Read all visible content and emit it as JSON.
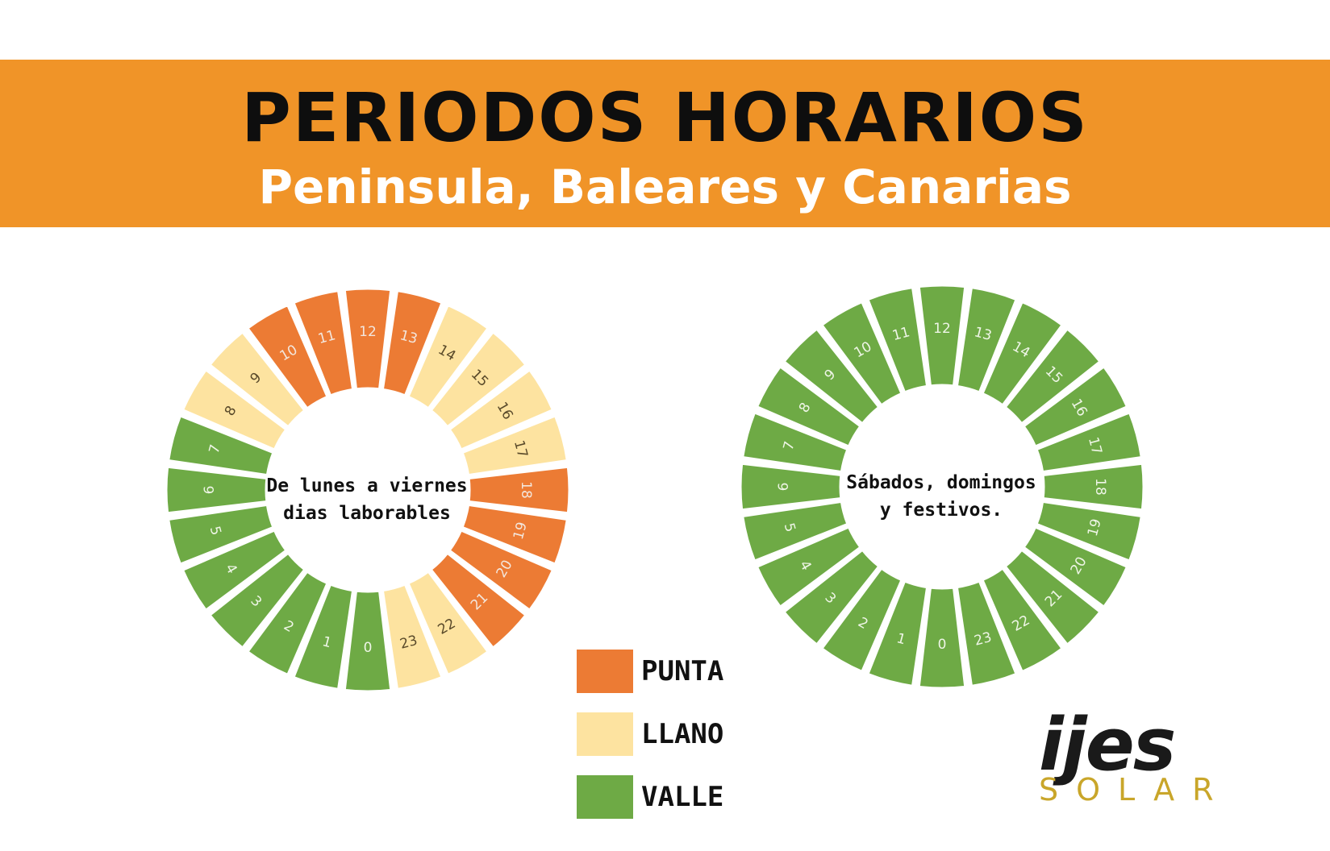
{
  "header": {
    "title": "PERIODOS HORARIOS",
    "subtitle": "Peninsula, Baleares y Canarias"
  },
  "colors": {
    "banner": "#f09428",
    "punta": "#ec7b34",
    "llano": "#fde3a0",
    "valle": "#6eaa45"
  },
  "wheels": [
    {
      "id": "weekday",
      "center_lines": [
        "De lunes a viernes",
        "dias laborables"
      ],
      "hours": [
        "V",
        "V",
        "V",
        "V",
        "V",
        "V",
        "V",
        "V",
        "L",
        "L",
        "P",
        "P",
        "P",
        "P",
        "L",
        "L",
        "L",
        "L",
        "P",
        "P",
        "P",
        "P",
        "L",
        "L"
      ]
    },
    {
      "id": "weekend",
      "center_lines": [
        "Sábados, domingos",
        "y festivos."
      ],
      "hours": [
        "V",
        "V",
        "V",
        "V",
        "V",
        "V",
        "V",
        "V",
        "V",
        "V",
        "V",
        "V",
        "V",
        "V",
        "V",
        "V",
        "V",
        "V",
        "V",
        "V",
        "V",
        "V",
        "V",
        "V"
      ]
    }
  ],
  "legend": [
    {
      "code": "P",
      "label": "PUNTA"
    },
    {
      "code": "L",
      "label": "LLANO"
    },
    {
      "code": "V",
      "label": "VALLE"
    }
  ],
  "logo": {
    "main": "ijes",
    "sub": "SOLAR"
  }
}
